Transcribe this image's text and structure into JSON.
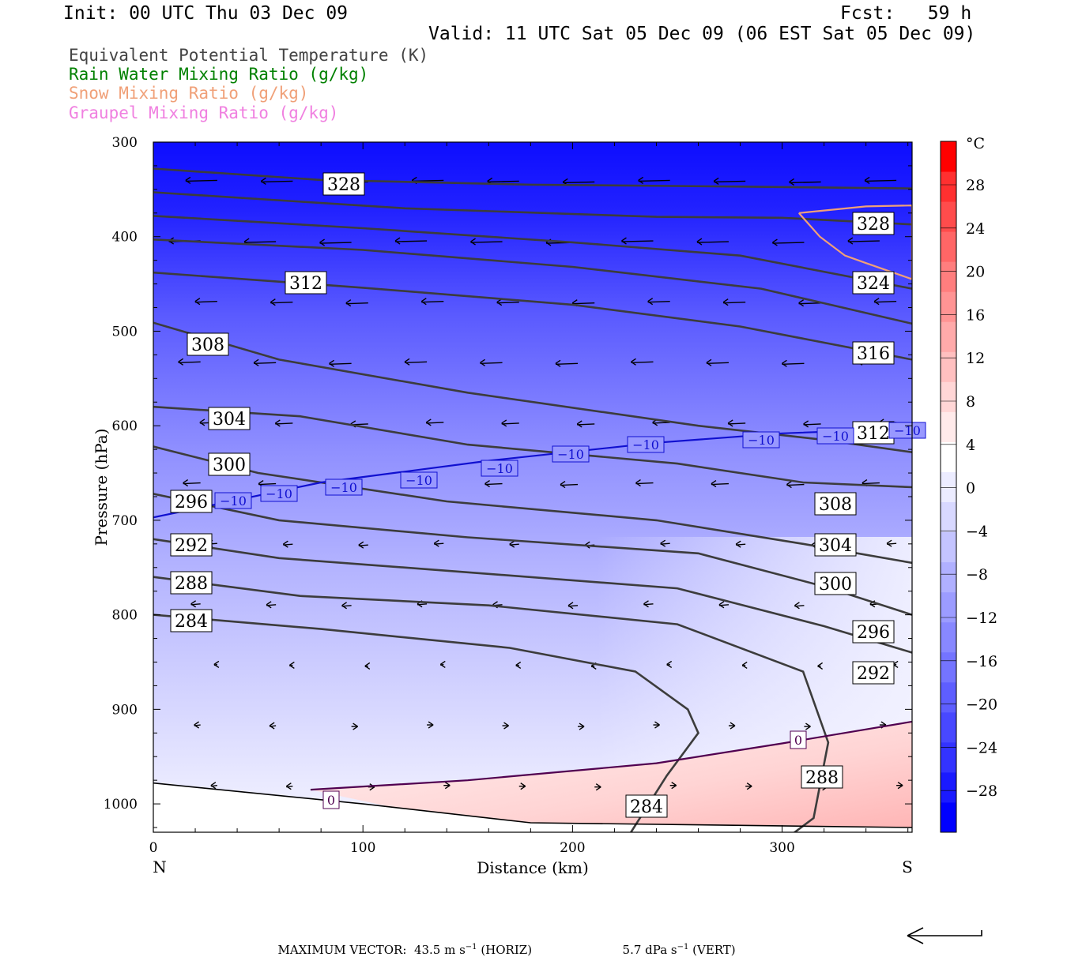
{
  "header": {
    "init": "Init: 00 UTC Thu 03 Dec 09",
    "fcst": "Fcst:   59 h",
    "valid": "Valid: 11 UTC Sat 05 Dec 09 (06 EST Sat 05 Dec 09)"
  },
  "fields": [
    {
      "label": "Equivalent Potential Temperature (K)",
      "color": "#444444"
    },
    {
      "label": "Rain Water Mixing Ratio (g/kg)",
      "color": "#008000"
    },
    {
      "label": "Snow Mixing Ratio (g/kg)",
      "color": "#f0a078"
    },
    {
      "label": "Graupel Mixing Ratio (g/kg)",
      "color": "#f080e0"
    }
  ],
  "chart_data": {
    "type": "contour-cross-section",
    "xlabel": "Distance (km)",
    "ylabel": "Pressure (hPa)",
    "xlim": [
      0,
      362
    ],
    "ylim": [
      1030,
      300
    ],
    "x_ticks": [
      "0",
      "100",
      "200",
      "300"
    ],
    "y_ticks": [
      "300",
      "400",
      "500",
      "600",
      "700",
      "800",
      "900",
      "1000"
    ],
    "left_end_label": "N",
    "right_end_label": "S",
    "colorbar": {
      "unit": "°C",
      "tick_labels": [
        "28",
        "24",
        "20",
        "16",
        "12",
        "8",
        "4",
        "0",
        "−4",
        "−8",
        "−12",
        "−16",
        "−20",
        "−24",
        "−28"
      ],
      "colors": [
        "#0000ff",
        "#1a1aff",
        "#3333ff",
        "#4848ff",
        "#5e5eff",
        "#7474ff",
        "#8888ff",
        "#9c9cff",
        "#b0b0ff",
        "#c4c4ff",
        "#d8d8ff",
        "#ececff",
        "#ffffff",
        "#ffeaea",
        "#ffd6d6",
        "#ffc0c0",
        "#ffaaaa",
        "#ff9494",
        "#ff7e7e",
        "#ff6666",
        "#ff4c4c",
        "#ff3030",
        "#ff0000"
      ]
    },
    "theta_e_contours": [
      {
        "label": "328",
        "points": [
          [
            0,
            328
          ],
          [
            80,
            340
          ],
          [
            180,
            345
          ],
          [
            280,
            347
          ],
          [
            362,
            349
          ]
        ]
      },
      {
        "label": "328",
        "points": [
          [
            0,
            353
          ],
          [
            120,
            370
          ],
          [
            240,
            379
          ],
          [
            300,
            380
          ],
          [
            362,
            387
          ]
        ]
      },
      {
        "label": "324",
        "points": [
          [
            0,
            378
          ],
          [
            100,
            391
          ],
          [
            200,
            406
          ],
          [
            280,
            420
          ],
          [
            362,
            455
          ]
        ]
      },
      {
        "label": "312",
        "points": [
          [
            0,
            403
          ],
          [
            100,
            414
          ],
          [
            200,
            432
          ],
          [
            290,
            455
          ],
          [
            362,
            492
          ]
        ]
      },
      {
        "label": "316",
        "points": [
          [
            0,
            438
          ],
          [
            100,
            454
          ],
          [
            200,
            472
          ],
          [
            280,
            495
          ],
          [
            362,
            530
          ]
        ]
      },
      {
        "label": "308",
        "points": [
          [
            0,
            491
          ],
          [
            60,
            530
          ],
          [
            150,
            565
          ],
          [
            260,
            600
          ],
          [
            320,
            615
          ],
          [
            362,
            628
          ]
        ]
      },
      {
        "label": "304",
        "points": [
          [
            0,
            580
          ],
          [
            70,
            590
          ],
          [
            150,
            620
          ],
          [
            250,
            640
          ],
          [
            310,
            660
          ],
          [
            362,
            665
          ]
        ]
      },
      {
        "label": "300",
        "points": [
          [
            0,
            622
          ],
          [
            50,
            650
          ],
          [
            140,
            680
          ],
          [
            240,
            700
          ],
          [
            310,
            725
          ],
          [
            362,
            745
          ]
        ]
      },
      {
        "label": "296",
        "points": [
          [
            0,
            672
          ],
          [
            60,
            700
          ],
          [
            150,
            718
          ],
          [
            260,
            735
          ],
          [
            320,
            770
          ],
          [
            362,
            800
          ]
        ]
      },
      {
        "label": "292",
        "points": [
          [
            0,
            720
          ],
          [
            60,
            740
          ],
          [
            150,
            755
          ],
          [
            250,
            772
          ],
          [
            320,
            812
          ],
          [
            362,
            840
          ]
        ]
      },
      {
        "label": "288",
        "points": [
          [
            0,
            760
          ],
          [
            70,
            780
          ],
          [
            160,
            790
          ],
          [
            250,
            810
          ],
          [
            310,
            860
          ],
          [
            322,
            935
          ],
          [
            315,
            1015
          ],
          [
            300,
            1040
          ]
        ]
      },
      {
        "label": "284",
        "points": [
          [
            0,
            800
          ],
          [
            80,
            815
          ],
          [
            170,
            835
          ],
          [
            230,
            860
          ],
          [
            255,
            900
          ],
          [
            260,
            925
          ],
          [
            245,
            970
          ],
          [
            225,
            1040
          ]
        ]
      }
    ],
    "temperature_contours": [
      {
        "label": "-10",
        "points": [
          [
            0,
            697
          ],
          [
            80,
            660
          ],
          [
            160,
            637
          ],
          [
            240,
            618
          ],
          [
            300,
            608
          ],
          [
            362,
            603
          ]
        ]
      },
      {
        "label": "0",
        "points": [
          [
            75,
            985
          ],
          [
            150,
            975
          ],
          [
            240,
            957
          ],
          [
            300,
            936
          ],
          [
            362,
            913
          ]
        ]
      }
    ],
    "temperature_contour_labels": [
      "−10",
      "−10",
      "−10",
      "−10",
      "−10",
      "−10",
      "−10",
      "−10",
      "−10",
      "−10",
      "0",
      "0"
    ],
    "ground_level": [
      [
        0,
        978
      ],
      [
        100,
        1000
      ],
      [
        180,
        1020
      ],
      [
        362,
        1025
      ]
    ],
    "snow_contour": [
      [
        308,
        375
      ],
      [
        340,
        368
      ],
      [
        362,
        367
      ],
      [
        362,
        445
      ],
      [
        340,
        428
      ],
      [
        330,
        420
      ],
      [
        318,
        400
      ],
      [
        308,
        375
      ]
    ],
    "wind_vectors_visible": true
  },
  "footer": {
    "max_vector_label": "MAXIMUM VECTOR:",
    "max_vector_horiz": "43.5 m s",
    "horiz_unit_sup": "−1",
    "horiz_suffix": "(HORIZ)",
    "max_vector_vert": "5.7 dPa s",
    "vert_unit_sup": "−1",
    "vert_suffix": "(VERT)"
  }
}
